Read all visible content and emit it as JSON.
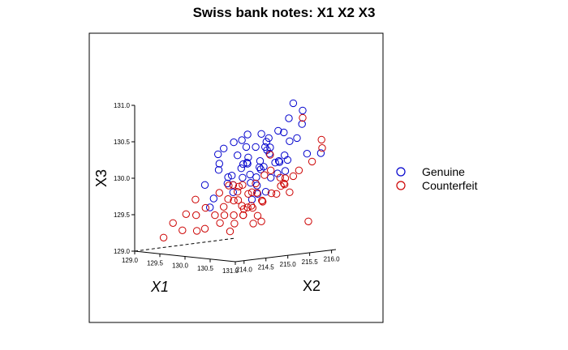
{
  "chart_data": {
    "type": "scatter",
    "title": "Swiss bank notes: X1 X2 X3",
    "xlabel": "X1",
    "ylabel": "X2",
    "zlabel": "X3",
    "x_ticks": [
      "129.0",
      "129.5",
      "130.0",
      "130.5",
      "131.0"
    ],
    "y_ticks": [
      "214.0",
      "214.5",
      "215.0",
      "215.5",
      "216.0"
    ],
    "z_ticks": [
      "129.0",
      "129.5",
      "130.0",
      "130.5",
      "131.0"
    ],
    "xlim": [
      129.0,
      131.0
    ],
    "ylim": [
      213.8,
      216.1
    ],
    "zlim": [
      129.0,
      131.0
    ],
    "legend_position": "right",
    "series": [
      {
        "name": "Genuine",
        "color": "#0000CC",
        "points": [
          [
            130.2,
            215.0,
            130.6
          ],
          [
            130.1,
            215.3,
            130.4
          ],
          [
            130.5,
            215.6,
            130.8
          ],
          [
            130.4,
            215.4,
            130.2
          ],
          [
            129.9,
            214.9,
            130.0
          ],
          [
            130.3,
            215.1,
            129.9
          ],
          [
            129.8,
            214.8,
            130.1
          ],
          [
            130.6,
            215.5,
            130.5
          ],
          [
            130.0,
            215.0,
            130.3
          ],
          [
            130.2,
            215.2,
            130.0
          ],
          [
            130.4,
            215.6,
            130.6
          ],
          [
            129.7,
            214.6,
            129.9
          ],
          [
            130.1,
            215.1,
            130.2
          ],
          [
            130.3,
            215.4,
            130.4
          ],
          [
            130.0,
            214.9,
            129.8
          ],
          [
            130.5,
            215.7,
            131.0
          ],
          [
            129.9,
            215.2,
            130.1
          ],
          [
            130.2,
            215.5,
            130.3
          ],
          [
            130.4,
            215.3,
            130.0
          ],
          [
            130.1,
            214.8,
            130.5
          ],
          [
            129.8,
            215.0,
            129.9
          ],
          [
            130.3,
            215.8,
            130.2
          ],
          [
            130.0,
            215.2,
            130.4
          ],
          [
            130.6,
            215.9,
            130.3
          ],
          [
            130.2,
            214.9,
            130.2
          ],
          [
            129.9,
            215.4,
            130.0
          ],
          [
            130.1,
            215.6,
            130.5
          ],
          [
            130.4,
            215.0,
            129.8
          ],
          [
            130.3,
            215.2,
            130.6
          ],
          [
            130.0,
            215.5,
            130.1
          ],
          [
            129.7,
            214.9,
            130.3
          ],
          [
            130.2,
            215.3,
            130.1
          ],
          [
            130.5,
            215.1,
            130.4
          ],
          [
            130.1,
            215.0,
            130.0
          ],
          [
            129.9,
            214.7,
            130.2
          ],
          [
            130.4,
            215.5,
            130.2
          ],
          [
            130.0,
            215.3,
            129.9
          ],
          [
            130.2,
            215.7,
            130.6
          ],
          [
            130.6,
            215.4,
            130.1
          ],
          [
            129.8,
            215.1,
            130.0
          ],
          [
            130.3,
            214.9,
            130.3
          ],
          [
            130.1,
            215.4,
            130.2
          ],
          [
            130.5,
            215.9,
            130.7
          ],
          [
            130.2,
            215.1,
            129.7
          ],
          [
            129.9,
            214.8,
            130.4
          ],
          [
            130.0,
            215.6,
            130.1
          ],
          [
            130.4,
            215.2,
            130.5
          ],
          [
            130.7,
            216.1,
            130.3
          ],
          [
            130.2,
            215.0,
            130.2
          ],
          [
            130.1,
            215.8,
            130.0
          ],
          [
            129.8,
            214.6,
            129.6
          ],
          [
            130.3,
            215.3,
            129.8
          ],
          [
            130.0,
            214.9,
            129.9
          ],
          [
            130.5,
            215.5,
            130.3
          ],
          [
            130.6,
            215.8,
            130.9
          ],
          [
            130.2,
            215.4,
            130.4
          ],
          [
            130.4,
            215.9,
            130.5
          ],
          [
            129.7,
            214.8,
            129.7
          ],
          [
            130.0,
            215.1,
            130.5
          ],
          [
            130.3,
            215.6,
            130.2
          ]
        ]
      },
      {
        "name": "Counterfeit",
        "color": "#CC0000",
        "points": [
          [
            130.1,
            214.8,
            129.7
          ],
          [
            130.3,
            215.0,
            129.6
          ],
          [
            129.9,
            214.6,
            129.5
          ],
          [
            130.5,
            215.2,
            129.8
          ],
          [
            130.0,
            214.9,
            129.9
          ],
          [
            130.2,
            214.7,
            129.4
          ],
          [
            130.4,
            215.1,
            129.7
          ],
          [
            129.8,
            214.5,
            129.6
          ],
          [
            130.6,
            215.3,
            129.9
          ],
          [
            130.1,
            214.8,
            129.5
          ],
          [
            129.6,
            214.2,
            129.3
          ],
          [
            130.3,
            214.9,
            129.8
          ],
          [
            130.0,
            214.6,
            129.4
          ],
          [
            130.5,
            215.4,
            130.0
          ],
          [
            130.2,
            215.0,
            129.6
          ],
          [
            129.4,
            214.0,
            129.2
          ],
          [
            130.7,
            215.6,
            130.1
          ],
          [
            130.1,
            214.9,
            129.7
          ],
          [
            129.9,
            214.7,
            129.8
          ],
          [
            130.4,
            215.0,
            129.5
          ],
          [
            130.6,
            215.5,
            129.8
          ],
          [
            130.2,
            214.8,
            129.9
          ],
          [
            130.0,
            215.1,
            129.6
          ],
          [
            130.3,
            215.2,
            129.4
          ],
          [
            129.7,
            214.4,
            129.5
          ],
          [
            130.5,
            215.7,
            130.0
          ],
          [
            130.1,
            215.0,
            129.9
          ],
          [
            130.8,
            216.0,
            130.5
          ],
          [
            130.2,
            214.6,
            129.3
          ],
          [
            129.9,
            214.9,
            129.7
          ],
          [
            130.4,
            215.3,
            130.1
          ],
          [
            130.0,
            214.7,
            129.5
          ],
          [
            130.6,
            215.8,
            130.8
          ],
          [
            130.3,
            215.1,
            129.8
          ],
          [
            129.5,
            214.1,
            129.4
          ],
          [
            130.1,
            215.2,
            129.6
          ],
          [
            130.5,
            215.0,
            129.7
          ],
          [
            130.7,
            215.9,
            130.2
          ],
          [
            130.2,
            214.9,
            129.5
          ],
          [
            129.8,
            214.3,
            129.3
          ],
          [
            130.4,
            215.6,
            129.9
          ],
          [
            130.0,
            215.0,
            129.8
          ],
          [
            130.3,
            214.8,
            129.6
          ],
          [
            130.6,
            215.4,
            130.0
          ],
          [
            129.6,
            214.5,
            129.7
          ],
          [
            130.1,
            215.3,
            129.9
          ],
          [
            130.8,
            215.7,
            129.4
          ],
          [
            130.2,
            215.1,
            129.8
          ],
          [
            129.9,
            214.8,
            129.6
          ],
          [
            130.5,
            215.5,
            129.9
          ],
          [
            130.4,
            214.9,
            129.4
          ],
          [
            130.0,
            214.8,
            129.9
          ],
          [
            130.3,
            215.4,
            130.3
          ],
          [
            129.7,
            214.6,
            129.3
          ],
          [
            130.6,
            215.2,
            129.8
          ],
          [
            130.1,
            215.5,
            130.0
          ],
          [
            130.2,
            214.9,
            129.5
          ],
          [
            129.5,
            214.4,
            129.5
          ],
          [
            130.4,
            215.1,
            129.7
          ],
          [
            130.9,
            215.9,
            130.4
          ]
        ]
      }
    ]
  }
}
